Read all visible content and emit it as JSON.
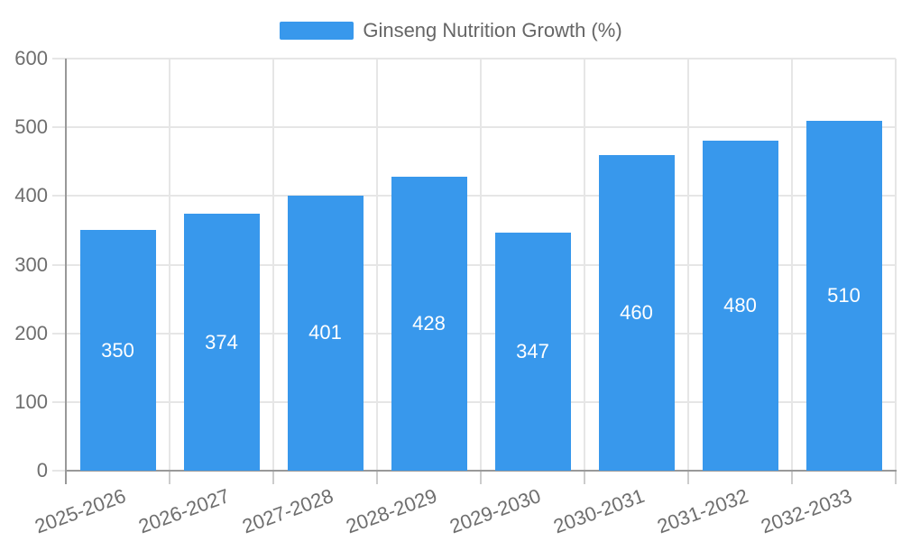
{
  "legend": {
    "position": "top"
  },
  "colors": {
    "bar": "#3898EC",
    "bar_value_text": "#FFFFFF",
    "legend_text": "#666666",
    "axis_label_text": "#6E6E6E",
    "axis_line": "#999999",
    "grid_line": "#E6E6E6",
    "tick_line": "#CCCCCC"
  },
  "chart_data": {
    "type": "bar",
    "title": "",
    "categories": [
      "2025-2026",
      "2026-2027",
      "2027-2028",
      "2028-2029",
      "2029-2030",
      "2030-2031",
      "2031-2032",
      "2032-2033"
    ],
    "series": [
      {
        "name": "Ginseng Nutrition Growth (%)",
        "values": [
          350,
          374,
          401,
          428,
          347,
          460,
          480,
          510
        ]
      }
    ],
    "xlabel": "",
    "ylabel": "",
    "ylim": [
      0,
      600
    ],
    "ytick_step": 100,
    "yticks": [
      0,
      100,
      200,
      300,
      400,
      500,
      600
    ],
    "grid": true,
    "legend_position": "top",
    "bar_value_labels": true,
    "x_label_rotation_deg": 20
  }
}
